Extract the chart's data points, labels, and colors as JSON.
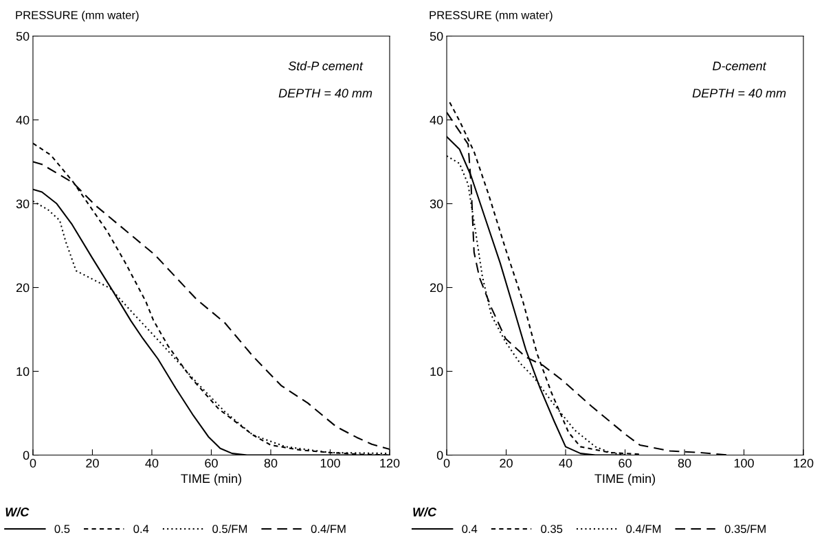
{
  "chart_data": [
    {
      "type": "line",
      "xlabel": "TIME (min)",
      "ylabel": "PRESSURE (mm water)",
      "legend_title": "W/C",
      "legend": "bottom",
      "annotations": [
        "Std-P cement",
        "DEPTH = 40 mm"
      ],
      "xlim": [
        0,
        120
      ],
      "ylim": [
        0,
        50
      ],
      "xticks": [
        0,
        20,
        40,
        60,
        80,
        100,
        120
      ],
      "yticks": [
        0,
        10,
        20,
        30,
        40,
        50
      ],
      "grid": false,
      "series": [
        {
          "name": "0.5",
          "color": "#000000",
          "line_style": "solid",
          "x": [
            0,
            3,
            8,
            13,
            20,
            27,
            33,
            37,
            42,
            48,
            54,
            59,
            63,
            67,
            72,
            80,
            100,
            120
          ],
          "values": [
            31.7,
            31.4,
            30,
            27.6,
            23.5,
            19.5,
            16,
            13.9,
            11.5,
            8,
            4.7,
            2.2,
            0.8,
            0.2,
            0,
            0,
            0,
            0
          ]
        },
        {
          "name": "0.4",
          "color": "#000000",
          "line_style": "dashed",
          "x": [
            0,
            6,
            13.5,
            17,
            25,
            31,
            38,
            40.5,
            45.5,
            53,
            62.5,
            74,
            80,
            90,
            100,
            110,
            120
          ],
          "values": [
            37.2,
            35.8,
            32.6,
            30.8,
            26.7,
            23,
            18.3,
            16.1,
            13,
            9.3,
            5.5,
            2.4,
            1.2,
            0.6,
            0.3,
            0.1,
            0
          ]
        },
        {
          "name": "0.5/FM",
          "color": "#000000",
          "line_style": "dotted",
          "x": [
            0,
            5,
            9,
            11,
            14.5,
            26,
            34,
            44,
            55,
            64.5,
            74,
            85,
            100,
            120
          ],
          "values": [
            30.3,
            29.3,
            28,
            25.5,
            22,
            19.9,
            16.8,
            13,
            8.7,
            5.2,
            2.4,
            1,
            0.3,
            0.2
          ]
        },
        {
          "name": "0.4/FM",
          "color": "#000000",
          "line_style": "longdash",
          "x": [
            0,
            3,
            13.5,
            21,
            31.5,
            41,
            55,
            64.5,
            74,
            83.5,
            92.5,
            102,
            109,
            114,
            120
          ],
          "values": [
            35,
            34.7,
            32.5,
            29.8,
            26.7,
            23.9,
            18.6,
            15.8,
            11.8,
            8.3,
            6.2,
            3.4,
            2.1,
            1.3,
            0.7
          ]
        }
      ]
    },
    {
      "type": "line",
      "xlabel": "TIME (min)",
      "ylabel": "PRESSURE (mm water)",
      "legend_title": "W/C",
      "legend": "bottom",
      "annotations": [
        "D-cement",
        "DEPTH = 40 mm"
      ],
      "xlim": [
        0,
        120
      ],
      "ylim": [
        0,
        50
      ],
      "xticks": [
        0,
        20,
        40,
        60,
        80,
        100,
        120
      ],
      "yticks": [
        0,
        10,
        20,
        30,
        40,
        50
      ],
      "grid": false,
      "series": [
        {
          "name": "0.4",
          "color": "#000000",
          "line_style": "solid",
          "x": [
            0,
            4.3,
            8.2,
            13,
            18,
            22.7,
            26.6,
            31.4,
            36.2,
            40,
            45,
            50,
            60
          ],
          "values": [
            38,
            36.5,
            33.3,
            28.2,
            22.9,
            17.3,
            12.6,
            8,
            4,
            1,
            0.2,
            0,
            0
          ]
        },
        {
          "name": "0.35",
          "color": "#000000",
          "line_style": "dashed",
          "x": [
            1,
            4.3,
            9.2,
            14,
            19.8,
            25.6,
            30.4,
            35.3,
            41,
            45,
            55,
            65
          ],
          "values": [
            42.1,
            39.9,
            36.2,
            31.2,
            24.6,
            18.4,
            12.1,
            7.4,
            2.7,
            1,
            0.3,
            0.1
          ]
        },
        {
          "name": "0.4/FM",
          "color": "#000000",
          "line_style": "dotted",
          "x": [
            0,
            4.3,
            7.2,
            10,
            12,
            15,
            19.8,
            24.6,
            29.5,
            35.3,
            43,
            50,
            55,
            60
          ],
          "values": [
            35.7,
            34.8,
            32.3,
            26,
            21.3,
            16.7,
            13.5,
            11,
            9.2,
            6.4,
            3,
            1,
            0.3,
            0
          ]
        },
        {
          "name": "0.35/FM",
          "color": "#000000",
          "line_style": "longdash",
          "x": [
            0,
            7.2,
            8.2,
            9.2,
            11,
            15,
            19.8,
            26.6,
            32.4,
            39,
            48.8,
            60.4,
            65,
            75,
            85,
            95
          ],
          "values": [
            40.9,
            37.1,
            32.3,
            24.2,
            21.2,
            17.6,
            13.9,
            11.7,
            10.7,
            8.9,
            5.8,
            2.4,
            1.2,
            0.5,
            0.3,
            0
          ]
        }
      ]
    }
  ]
}
